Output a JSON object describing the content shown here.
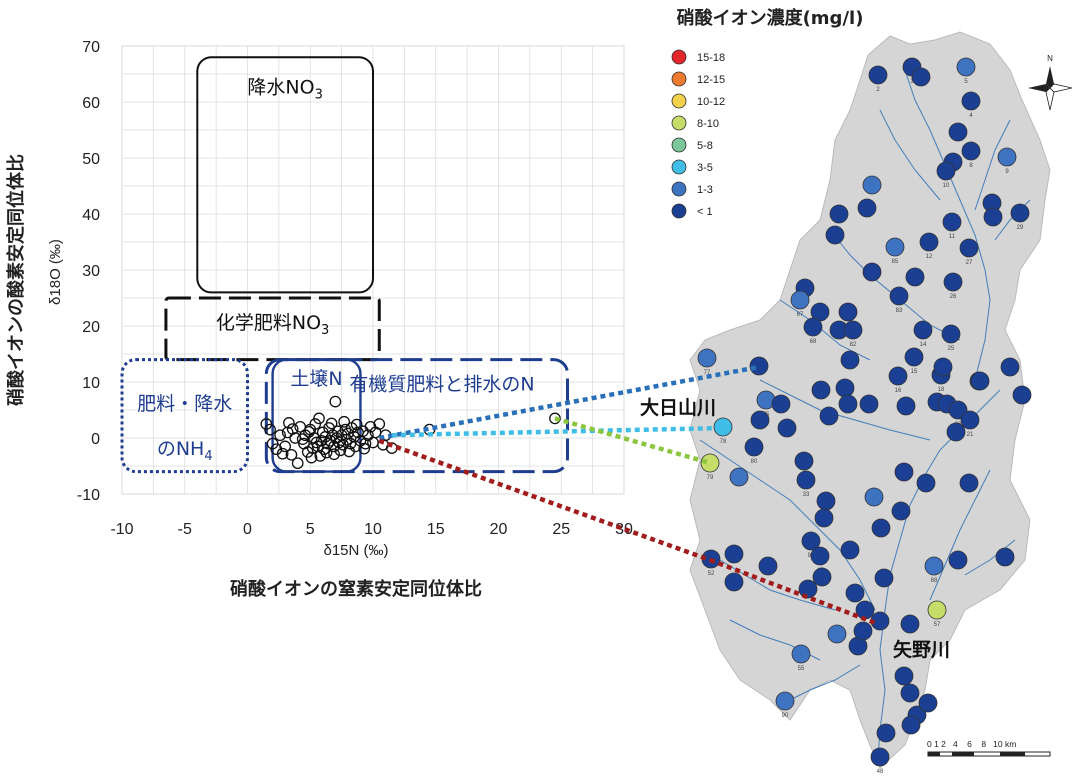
{
  "chart_data": {
    "type": "scatter",
    "xlim": [
      -10,
      30
    ],
    "ylim": [
      -10,
      70
    ],
    "xticks": [
      "-10",
      "-5",
      "0",
      "5",
      "10",
      "15",
      "20",
      "25",
      "30"
    ],
    "yticks": [
      "-10",
      "0",
      "10",
      "20",
      "30",
      "40",
      "50",
      "60",
      "70"
    ],
    "xlabel": "δ15N (‰)",
    "ylabel": "δ18O (‰)",
    "xtitle": "硝酸イオンの窒素安定同位体比",
    "ytitle": "硝酸イオンの酸素安定同位体比",
    "grid": true,
    "source_regions": [
      {
        "id": "rain",
        "label": "降水NO3",
        "x": [
          -4,
          10
        ],
        "y": [
          26,
          68
        ],
        "style": "solid",
        "color": "#111111"
      },
      {
        "id": "chem",
        "label": "化学肥料NO3",
        "x": [
          -6.5,
          10.5
        ],
        "y": [
          14,
          25
        ],
        "style": "dashed",
        "color": "#111111"
      },
      {
        "id": "nh4",
        "label": "肥料・降水のNH4",
        "x": [
          -10,
          0
        ],
        "y": [
          -6,
          14
        ],
        "style": "dotted",
        "color": "#1f3d8f"
      },
      {
        "id": "soil",
        "label": "土壌N",
        "x": [
          2,
          9
        ],
        "y": [
          -6,
          14
        ],
        "style": "solid",
        "color": "#1f3d8f"
      },
      {
        "id": "org",
        "label": "有機質肥料と排水のN",
        "x": [
          1.5,
          25.5
        ],
        "y": [
          -6,
          14
        ],
        "style": "dashed",
        "color": "#1f3d8f"
      }
    ],
    "points": [
      [
        1.5,
        2.5
      ],
      [
        1.8,
        1.5
      ],
      [
        2.0,
        -1.0
      ],
      [
        2.3,
        -2.0
      ],
      [
        2.6,
        0.5
      ],
      [
        3.0,
        -1.5
      ],
      [
        3.2,
        1.0
      ],
      [
        3.5,
        -3.0
      ],
      [
        3.8,
        0.0
      ],
      [
        4.0,
        -4.5
      ],
      [
        4.2,
        2.0
      ],
      [
        4.5,
        -1.0
      ],
      [
        4.6,
        0.5
      ],
      [
        4.8,
        -2.5
      ],
      [
        5.0,
        1.5
      ],
      [
        5.1,
        -3.5
      ],
      [
        5.3,
        0.0
      ],
      [
        5.4,
        2.5
      ],
      [
        5.6,
        -1.5
      ],
      [
        5.7,
        3.5
      ],
      [
        5.9,
        -0.5
      ],
      [
        6.0,
        1.0
      ],
      [
        6.1,
        -2.0
      ],
      [
        6.2,
        0.2
      ],
      [
        6.4,
        -1.0
      ],
      [
        6.5,
        1.8
      ],
      [
        6.6,
        -0.5
      ],
      [
        6.8,
        0.5
      ],
      [
        6.9,
        -1.5
      ],
      [
        7.0,
        6.5
      ],
      [
        7.1,
        0.0
      ],
      [
        7.2,
        1.2
      ],
      [
        7.3,
        -0.8
      ],
      [
        7.5,
        0.5
      ],
      [
        7.6,
        -1.2
      ],
      [
        7.8,
        1.5
      ],
      [
        7.9,
        -0.3
      ],
      [
        8.0,
        0.8
      ],
      [
        8.2,
        -1.0
      ],
      [
        8.3,
        1.8
      ],
      [
        8.5,
        0.2
      ],
      [
        8.6,
        -1.5
      ],
      [
        8.8,
        1.0
      ],
      [
        9.0,
        -0.5
      ],
      [
        9.2,
        1.2
      ],
      [
        9.4,
        -1.0
      ],
      [
        9.6,
        0.5
      ],
      [
        9.8,
        2.0
      ],
      [
        10.0,
        -0.8
      ],
      [
        10.2,
        1.0
      ],
      [
        10.5,
        2.5
      ],
      [
        10.8,
        -1.2
      ],
      [
        11.0,
        0.5
      ],
      [
        11.5,
        -1.8
      ],
      [
        5.2,
        -1.8
      ],
      [
        5.5,
        -0.8
      ],
      [
        6.3,
        -2.6
      ],
      [
        7.4,
        -2.2
      ],
      [
        4.9,
        1.1
      ],
      [
        6.7,
        2.6
      ],
      [
        3.6,
        1.6
      ],
      [
        2.8,
        -2.8
      ],
      [
        4.4,
        -0.2
      ],
      [
        8.7,
        2.4
      ],
      [
        9.3,
        -1.9
      ],
      [
        7.7,
        2.9
      ],
      [
        5.8,
        -3.2
      ],
      [
        6.9,
        -2.9
      ],
      [
        3.3,
        2.7
      ],
      [
        8.1,
        -2.4
      ],
      [
        14.5,
        1.5
      ],
      [
        24.5,
        3.5
      ]
    ],
    "map_legend_title": "硝酸イオン濃度(mg/l)",
    "map_legend": [
      {
        "label": "15-18",
        "color": "#e3262a"
      },
      {
        "label": "12-15",
        "color": "#f07a2e"
      },
      {
        "label": "10-12",
        "color": "#f1d24a"
      },
      {
        "label": "8-10",
        "color": "#c6dd6a"
      },
      {
        "label": "5-8",
        "color": "#7cc79a"
      },
      {
        "label": "3-5",
        "color": "#3fbde6"
      },
      {
        "label": "1-3",
        "color": "#3d73c1"
      },
      {
        "label": "< 1",
        "color": "#1b3f92"
      }
    ],
    "river_labels": [
      "大日山川",
      "矢野川"
    ],
    "scale_bar": "0 1 2   4    6    8   10 km"
  },
  "colors": {
    "conn_blue": "#2a70b9",
    "conn_cyan": "#3fbde6",
    "conn_green": "#8cc63f",
    "conn_red": "#a11d1d"
  }
}
